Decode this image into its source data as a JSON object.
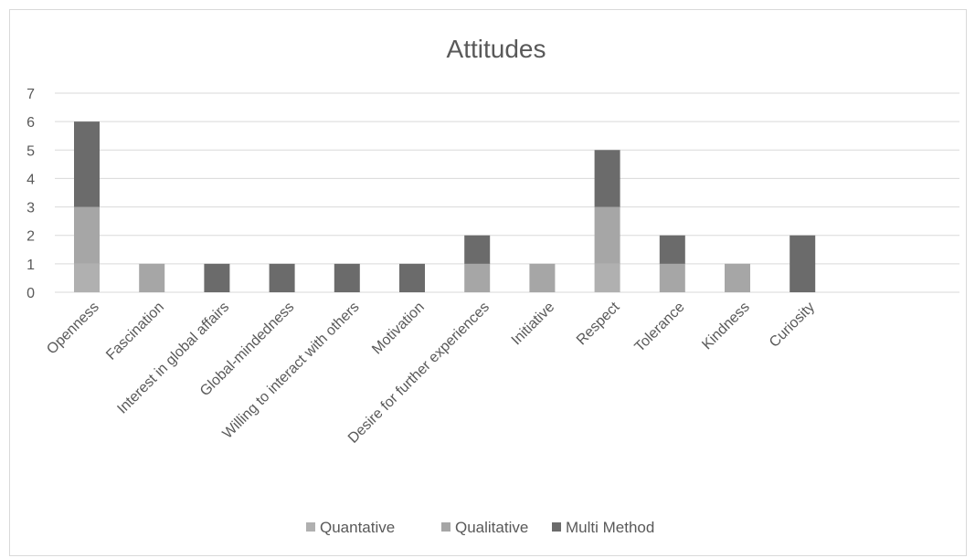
{
  "chart_data": {
    "type": "bar",
    "stacked": true,
    "title": "Attitudes",
    "ylim": [
      0,
      7
    ],
    "yticks": [
      0,
      1,
      2,
      3,
      4,
      5,
      6,
      7
    ],
    "grid": true,
    "legend_position": "bottom",
    "categories": [
      "Openness",
      "Fascination",
      "Interest in global affairs",
      "Global-mindedness",
      "Willing to interact with others",
      "Motivation",
      "Desire for further experiences",
      "Initiative",
      "Respect",
      "Tolerance",
      "Kindness",
      "Curiosity"
    ],
    "series": [
      {
        "name": "Quantative",
        "color": "#b0b0b0",
        "values": [
          1,
          0,
          0,
          0,
          0,
          0,
          0,
          0,
          1,
          0,
          0,
          0
        ]
      },
      {
        "name": "Qualitative",
        "color": "#a6a6a6",
        "values": [
          2,
          1,
          0,
          0,
          0,
          0,
          1,
          1,
          2,
          1,
          1,
          0
        ]
      },
      {
        "name": "Multi Method",
        "color": "#6b6b6b",
        "values": [
          3,
          0,
          1,
          1,
          1,
          1,
          1,
          0,
          2,
          1,
          0,
          2
        ]
      }
    ]
  }
}
